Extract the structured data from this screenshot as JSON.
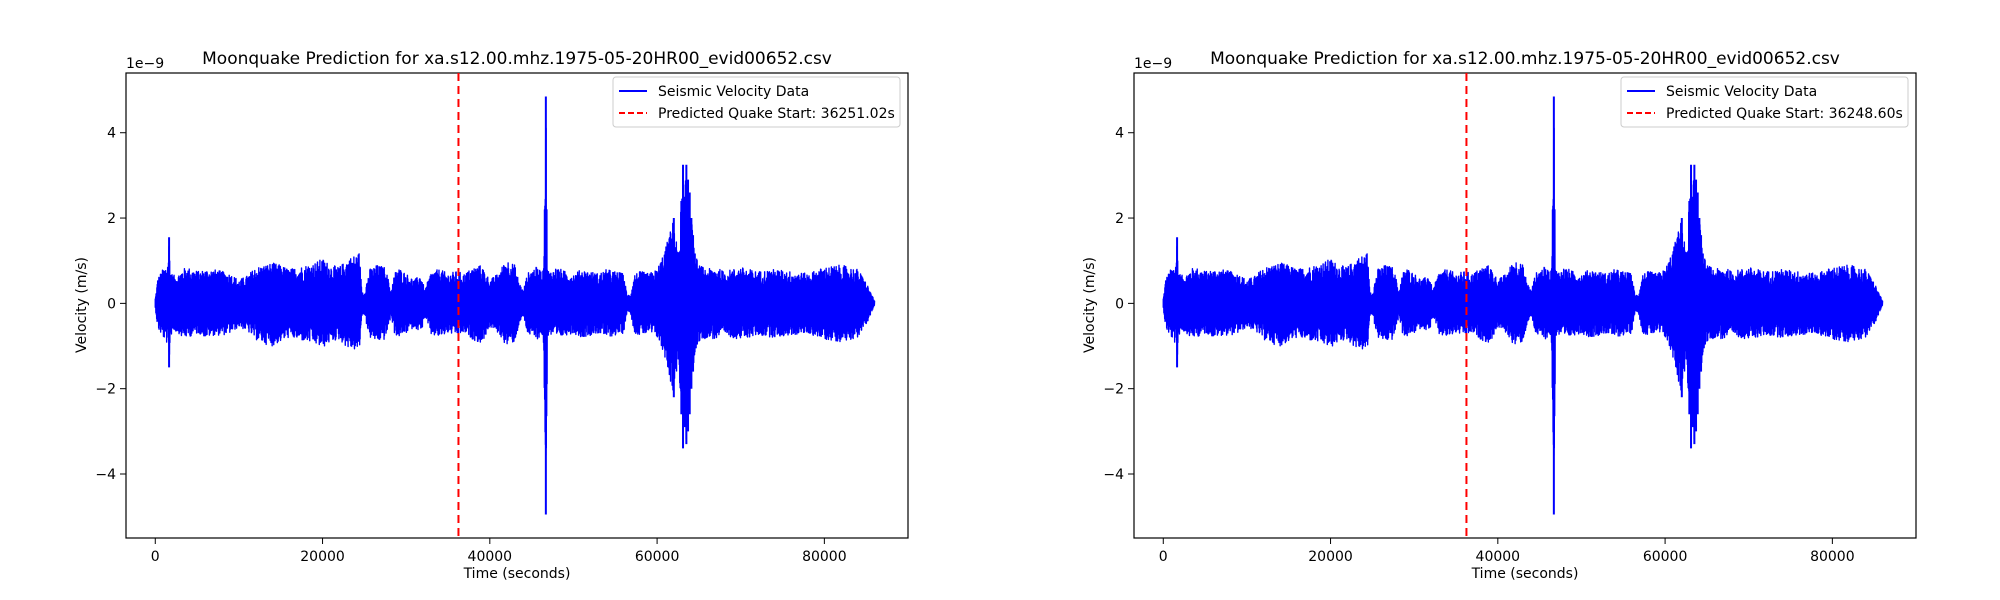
{
  "chart_data": [
    {
      "type": "line",
      "title": "Moonquake Prediction for xa.s12.00.mhz.1975-05-20HR00_evid00652.csv",
      "xlabel": "Time (seconds)",
      "ylabel": "Velocity (m/s)",
      "y_scale_label": "1e−9",
      "xlim": [
        -3500,
        90000
      ],
      "ylim": [
        -5.5,
        5.4
      ],
      "x_ticks": [
        0,
        20000,
        40000,
        60000,
        80000
      ],
      "x_tick_labels": [
        "0",
        "20000",
        "40000",
        "60000",
        "80000"
      ],
      "y_ticks": [
        -4,
        -2,
        0,
        2,
        4
      ],
      "y_tick_labels": [
        "−4",
        "−2",
        "0",
        "2",
        "4"
      ],
      "grid": false,
      "legend_position": "top-right",
      "series": [
        {
          "name": "Seismic Velocity Data",
          "color": "#0000ff",
          "style": "solid",
          "envelope": {
            "time_s": [
              0,
              300,
              600,
              900,
              1300,
              1500,
              1650,
              1800,
              2000,
              2300,
              2800,
              3200,
              3800,
              4500,
              5200,
              6000,
              7000,
              8000,
              9000,
              10000,
              11000,
              12000,
              13000,
              14000,
              15000,
              16000,
              17000,
              18000,
              19000,
              20000,
              21000,
              22000,
              23000,
              24000,
              24400,
              24700,
              25000,
              25600,
              26500,
              27500,
              28200,
              28600,
              29000,
              30000,
              31000,
              31800,
              32200,
              33000,
              34000,
              35000,
              36000,
              37000,
              38000,
              39000,
              40000,
              41000,
              42000,
              43000,
              43500,
              44000,
              44500,
              45000,
              45500,
              46000,
              46400,
              46700,
              46900,
              47200,
              48000,
              49000,
              50000,
              51000,
              52000,
              53000,
              54000,
              55000,
              56000,
              56400,
              56800,
              57300,
              58000,
              59000,
              60000,
              61000,
              62000,
              62500,
              62900,
              63100,
              63300,
              63500,
              63700,
              63900,
              64100,
              64300,
              64500,
              65000,
              65500,
              66000,
              67000,
              68000,
              69000,
              70000,
              72000,
              74000,
              76000,
              78000,
              80000,
              82000,
              84000,
              85000,
              86000
            ],
            "upper": [
              0.1,
              0.6,
              0.7,
              0.8,
              0.9,
              1.0,
              1.55,
              0.8,
              0.7,
              0.65,
              0.7,
              0.8,
              0.85,
              0.8,
              0.75,
              0.8,
              0.8,
              0.75,
              0.7,
              0.55,
              0.65,
              0.85,
              0.9,
              0.95,
              0.9,
              0.8,
              0.85,
              0.9,
              0.95,
              1.05,
              0.9,
              0.85,
              1.05,
              1.15,
              1.2,
              0.3,
              0.25,
              0.8,
              0.9,
              0.85,
              0.3,
              0.7,
              0.85,
              0.7,
              0.55,
              0.7,
              0.3,
              0.75,
              0.8,
              0.7,
              0.75,
              0.7,
              0.85,
              0.9,
              0.55,
              0.7,
              1.05,
              0.9,
              0.5,
              0.3,
              0.7,
              0.8,
              0.85,
              0.8,
              0.75,
              4.85,
              0.8,
              0.75,
              0.85,
              0.75,
              0.7,
              0.8,
              0.75,
              0.7,
              0.8,
              0.75,
              0.7,
              0.2,
              0.2,
              0.7,
              0.75,
              0.7,
              0.8,
              1.3,
              2.0,
              1.2,
              2.4,
              3.25,
              2.5,
              3.25,
              2.9,
              2.6,
              2.0,
              1.6,
              1.2,
              0.9,
              0.85,
              0.8,
              0.85,
              0.75,
              0.8,
              0.85,
              0.75,
              0.8,
              0.75,
              0.7,
              0.85,
              0.9,
              0.8,
              0.5,
              0.05
            ],
            "lower": [
              -0.1,
              -0.6,
              -0.7,
              -0.8,
              -0.9,
              -1.0,
              -1.5,
              -0.8,
              -0.7,
              -0.65,
              -0.7,
              -0.8,
              -0.8,
              -0.75,
              -0.7,
              -0.8,
              -0.75,
              -0.75,
              -0.7,
              -0.55,
              -0.65,
              -0.85,
              -0.95,
              -1.0,
              -0.9,
              -0.8,
              -0.85,
              -0.9,
              -0.95,
              -1.05,
              -0.9,
              -0.85,
              -1.05,
              -1.1,
              -1.15,
              -0.3,
              -0.25,
              -0.8,
              -0.9,
              -0.85,
              -0.3,
              -0.7,
              -0.8,
              -0.7,
              -0.55,
              -0.7,
              -0.3,
              -0.75,
              -0.8,
              -0.7,
              -0.75,
              -0.7,
              -0.85,
              -0.95,
              -0.55,
              -0.7,
              -1.0,
              -0.9,
              -0.5,
              -0.3,
              -0.7,
              -0.8,
              -0.85,
              -0.8,
              -0.75,
              -4.95,
              -0.8,
              -0.75,
              -0.85,
              -0.75,
              -0.7,
              -0.8,
              -0.75,
              -0.7,
              -0.8,
              -0.75,
              -0.7,
              -0.2,
              -0.2,
              -0.7,
              -0.75,
              -0.7,
              -0.8,
              -1.3,
              -2.2,
              -1.3,
              -2.6,
              -3.4,
              -2.9,
              -3.3,
              -3.0,
              -2.6,
              -2.0,
              -1.6,
              -1.2,
              -0.9,
              -0.85,
              -0.8,
              -0.85,
              -0.75,
              -0.8,
              -0.85,
              -0.75,
              -0.8,
              -0.75,
              -0.7,
              -0.85,
              -0.9,
              -0.8,
              -0.5,
              -0.05
            ]
          }
        },
        {
          "name": "Predicted Quake Start: 36251.02s",
          "color": "#ff0000",
          "style": "dashed",
          "x": 36251.02
        }
      ]
    },
    {
      "type": "line",
      "title": "Moonquake Prediction for xa.s12.00.mhz.1975-05-20HR00_evid00652.csv",
      "xlabel": "Time (seconds)",
      "ylabel": "Velocity (m/s)",
      "y_scale_label": "1e−9",
      "xlim": [
        -3500,
        90000
      ],
      "ylim": [
        -5.5,
        5.4
      ],
      "x_ticks": [
        0,
        20000,
        40000,
        60000,
        80000
      ],
      "x_tick_labels": [
        "0",
        "20000",
        "40000",
        "60000",
        "80000"
      ],
      "y_ticks": [
        -4,
        -2,
        0,
        2,
        4
      ],
      "y_tick_labels": [
        "−4",
        "−2",
        "0",
        "2",
        "4"
      ],
      "grid": false,
      "legend_position": "top-right",
      "series": [
        {
          "name": "Seismic Velocity Data",
          "color": "#0000ff",
          "style": "solid",
          "envelope": "same as chart 1"
        },
        {
          "name": "Predicted Quake Start: 36248.60s",
          "color": "#ff0000",
          "style": "dashed",
          "x": 36248.6
        }
      ]
    }
  ]
}
